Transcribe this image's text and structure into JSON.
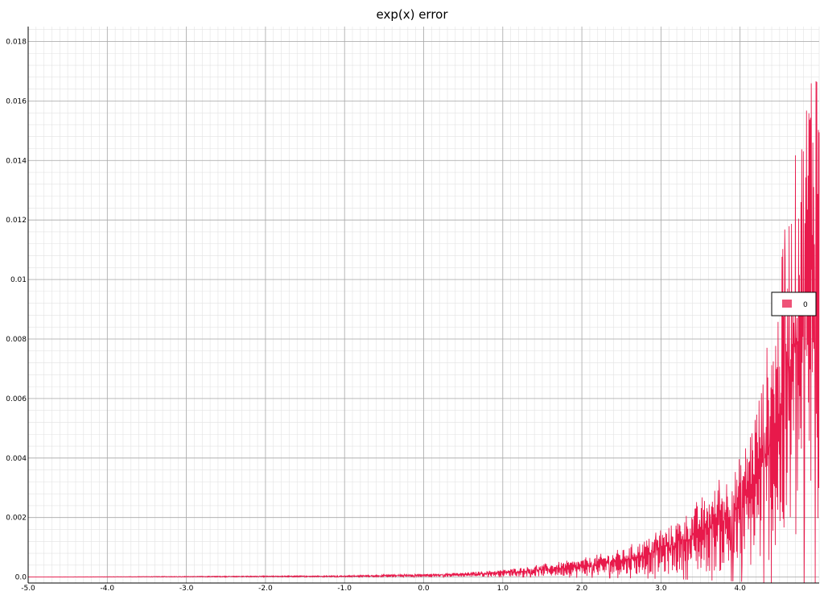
{
  "chart_data": {
    "type": "line",
    "title": "exp(x) error",
    "xlabel": "",
    "ylabel": "",
    "xlim": [
      -5.0,
      5.0
    ],
    "ylim": [
      -0.0002,
      0.0185
    ],
    "x_ticks": [
      "-5.0",
      "-4.0",
      "-3.0",
      "-2.0",
      "-1.0",
      "0.0",
      "1.0",
      "2.0",
      "3.0",
      "4.0"
    ],
    "y_ticks": [
      "0.0",
      "0.002",
      "0.004",
      "0.006",
      "0.008",
      "0.01",
      "0.012",
      "0.014",
      "0.016",
      "0.018"
    ],
    "grid": true,
    "minor_grid": true,
    "legend_position": "right",
    "series": [
      {
        "name": "0",
        "color": "#e8194b",
        "envelope_x": [
          -5.0,
          -1.0,
          0.0,
          0.5,
          1.0,
          1.5,
          2.0,
          2.5,
          3.0,
          3.5,
          4.0,
          4.3,
          4.5,
          4.6,
          4.7,
          4.8,
          4.9,
          5.0
        ],
        "envelope_y": [
          0.0,
          5e-05,
          0.0001,
          0.00015,
          0.00025,
          0.0004,
          0.0006,
          0.0009,
          0.0015,
          0.0025,
          0.0038,
          0.0068,
          0.0095,
          0.012,
          0.0135,
          0.0155,
          0.018,
          0.019
        ]
      }
    ]
  }
}
